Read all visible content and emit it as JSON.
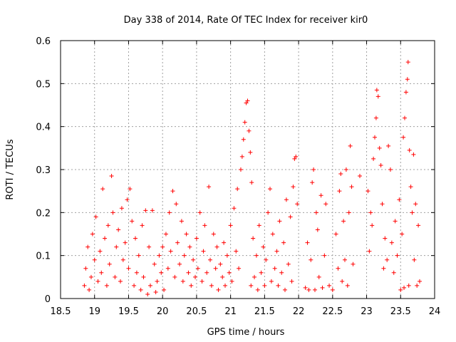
{
  "chart_data": {
    "type": "scatter",
    "title": "Day 338 of 2014, Rate Of TEC Index for receiver kir0",
    "xlabel": "GPS time / hours",
    "ylabel": "ROTI / TECUs",
    "xlim": [
      18.5,
      24
    ],
    "ylim": [
      0,
      0.6
    ],
    "xticks": [
      "18.5",
      "19",
      "19.5",
      "20",
      "20.5",
      "21",
      "21.5",
      "22",
      "22.5",
      "23",
      "23.5",
      "24"
    ],
    "yticks": [
      "0",
      "0.1",
      "0.2",
      "0.3",
      "0.4",
      "0.5",
      "0.6"
    ],
    "grid": true,
    "marker": "+",
    "color": "#ff0000",
    "series": [
      {
        "name": "ROTI",
        "points": [
          [
            18.85,
            0.03
          ],
          [
            18.87,
            0.07
          ],
          [
            18.9,
            0.12
          ],
          [
            18.92,
            0.02
          ],
          [
            18.95,
            0.05
          ],
          [
            18.97,
            0.15
          ],
          [
            19.0,
            0.09
          ],
          [
            19.02,
            0.19
          ],
          [
            19.05,
            0.04
          ],
          [
            19.08,
            0.11
          ],
          [
            19.1,
            0.06
          ],
          [
            19.12,
            0.255
          ],
          [
            19.15,
            0.14
          ],
          [
            19.18,
            0.03
          ],
          [
            19.2,
            0.17
          ],
          [
            19.22,
            0.08
          ],
          [
            19.25,
            0.285
          ],
          [
            19.27,
            0.2
          ],
          [
            19.3,
            0.05
          ],
          [
            19.32,
            0.12
          ],
          [
            19.35,
            0.16
          ],
          [
            19.38,
            0.04
          ],
          [
            19.4,
            0.21
          ],
          [
            19.42,
            0.09
          ],
          [
            19.45,
            0.13
          ],
          [
            19.48,
            0.23
          ],
          [
            19.5,
            0.07
          ],
          [
            19.52,
            0.255
          ],
          [
            19.55,
            0.18
          ],
          [
            19.58,
            0.03
          ],
          [
            19.6,
            0.14
          ],
          [
            19.62,
            0.06
          ],
          [
            19.65,
            0.1
          ],
          [
            19.68,
            0.02
          ],
          [
            19.7,
            0.17
          ],
          [
            19.72,
            0.05
          ],
          [
            19.75,
            0.205
          ],
          [
            19.78,
            0.01
          ],
          [
            19.8,
            0.12
          ],
          [
            19.82,
            0.03
          ],
          [
            19.85,
            0.205
          ],
          [
            19.88,
            0.08
          ],
          [
            19.9,
            0.015
          ],
          [
            19.92,
            0.04
          ],
          [
            19.95,
            0.1
          ],
          [
            19.98,
            0.06
          ],
          [
            20.0,
            0.12
          ],
          [
            20.02,
            0.02
          ],
          [
            20.05,
            0.15
          ],
          [
            20.08,
            0.07
          ],
          [
            20.1,
            0.2
          ],
          [
            20.12,
            0.11
          ],
          [
            20.15,
            0.25
          ],
          [
            20.18,
            0.05
          ],
          [
            20.2,
            0.22
          ],
          [
            20.22,
            0.13
          ],
          [
            20.25,
            0.08
          ],
          [
            20.28,
            0.18
          ],
          [
            20.3,
            0.04
          ],
          [
            20.32,
            0.1
          ],
          [
            20.35,
            0.15
          ],
          [
            20.38,
            0.06
          ],
          [
            20.4,
            0.12
          ],
          [
            20.42,
            0.03
          ],
          [
            20.45,
            0.09
          ],
          [
            20.48,
            0.05
          ],
          [
            20.5,
            0.14
          ],
          [
            20.52,
            0.07
          ],
          [
            20.55,
            0.2
          ],
          [
            20.58,
            0.04
          ],
          [
            20.6,
            0.11
          ],
          [
            20.62,
            0.17
          ],
          [
            20.65,
            0.06
          ],
          [
            20.68,
            0.26
          ],
          [
            20.7,
            0.09
          ],
          [
            20.72,
            0.03
          ],
          [
            20.75,
            0.15
          ],
          [
            20.78,
            0.07
          ],
          [
            20.8,
            0.12
          ],
          [
            20.82,
            0.02
          ],
          [
            20.85,
            0.08
          ],
          [
            20.88,
            0.05
          ],
          [
            20.9,
            0.13
          ],
          [
            20.92,
            0.03
          ],
          [
            20.95,
            0.1
          ],
          [
            20.98,
            0.06
          ],
          [
            21.0,
            0.17
          ],
          [
            21.02,
            0.04
          ],
          [
            21.05,
            0.21
          ],
          [
            21.08,
            0.11
          ],
          [
            21.1,
            0.255
          ],
          [
            21.12,
            0.07
          ],
          [
            21.15,
            0.3
          ],
          [
            21.17,
            0.33
          ],
          [
            21.19,
            0.37
          ],
          [
            21.21,
            0.41
          ],
          [
            21.23,
            0.455
          ],
          [
            21.25,
            0.46
          ],
          [
            21.27,
            0.39
          ],
          [
            21.29,
            0.34
          ],
          [
            21.31,
            0.27
          ],
          [
            21.3,
            0.03
          ],
          [
            21.33,
            0.14
          ],
          [
            21.35,
            0.05
          ],
          [
            21.38,
            0.1
          ],
          [
            21.4,
            0.02
          ],
          [
            21.42,
            0.17
          ],
          [
            21.45,
            0.06
          ],
          [
            21.48,
            0.12
          ],
          [
            21.5,
            0.03
          ],
          [
            21.52,
            0.09
          ],
          [
            21.55,
            0.2
          ],
          [
            21.58,
            0.255
          ],
          [
            21.6,
            0.04
          ],
          [
            21.62,
            0.15
          ],
          [
            21.65,
            0.07
          ],
          [
            21.68,
            0.11
          ],
          [
            21.7,
            0.03
          ],
          [
            21.72,
            0.18
          ],
          [
            21.75,
            0.06
          ],
          [
            21.78,
            0.13
          ],
          [
            21.8,
            0.02
          ],
          [
            21.82,
            0.23
          ],
          [
            21.85,
            0.08
          ],
          [
            21.88,
            0.19
          ],
          [
            21.9,
            0.04
          ],
          [
            21.92,
            0.26
          ],
          [
            21.94,
            0.325
          ],
          [
            21.96,
            0.33
          ],
          [
            21.98,
            0.22
          ],
          [
            22.1,
            0.025
          ],
          [
            22.13,
            0.13
          ],
          [
            22.15,
            0.02
          ],
          [
            22.18,
            0.09
          ],
          [
            22.2,
            0.27
          ],
          [
            22.22,
            0.3
          ],
          [
            22.24,
            0.02
          ],
          [
            22.26,
            0.2
          ],
          [
            22.28,
            0.16
          ],
          [
            22.3,
            0.05
          ],
          [
            22.33,
            0.24
          ],
          [
            22.35,
            0.025
          ],
          [
            22.38,
            0.1
          ],
          [
            22.4,
            0.22
          ],
          [
            22.45,
            0.03
          ],
          [
            22.5,
            0.02
          ],
          [
            22.55,
            0.15
          ],
          [
            22.58,
            0.07
          ],
          [
            22.6,
            0.25
          ],
          [
            22.62,
            0.29
          ],
          [
            22.64,
            0.04
          ],
          [
            22.66,
            0.18
          ],
          [
            22.68,
            0.09
          ],
          [
            22.7,
            0.3
          ],
          [
            22.72,
            0.03
          ],
          [
            22.74,
            0.2
          ],
          [
            22.76,
            0.355
          ],
          [
            22.78,
            0.26
          ],
          [
            22.8,
            0.08
          ],
          [
            22.9,
            0.285
          ],
          [
            23.02,
            0.25
          ],
          [
            23.04,
            0.11
          ],
          [
            23.06,
            0.2
          ],
          [
            23.08,
            0.17
          ],
          [
            23.1,
            0.325
          ],
          [
            23.12,
            0.375
          ],
          [
            23.14,
            0.42
          ],
          [
            23.15,
            0.485
          ],
          [
            23.17,
            0.47
          ],
          [
            23.19,
            0.35
          ],
          [
            23.21,
            0.31
          ],
          [
            23.23,
            0.22
          ],
          [
            23.25,
            0.07
          ],
          [
            23.27,
            0.14
          ],
          [
            23.3,
            0.09
          ],
          [
            23.32,
            0.355
          ],
          [
            23.35,
            0.3
          ],
          [
            23.37,
            0.13
          ],
          [
            23.4,
            0.06
          ],
          [
            23.42,
            0.18
          ],
          [
            23.45,
            0.1
          ],
          [
            23.48,
            0.23
          ],
          [
            23.5,
            0.02
          ],
          [
            23.52,
            0.15
          ],
          [
            23.54,
            0.375
          ],
          [
            23.56,
            0.42
          ],
          [
            23.58,
            0.48
          ],
          [
            23.6,
            0.51
          ],
          [
            23.61,
            0.55
          ],
          [
            23.63,
            0.345
          ],
          [
            23.65,
            0.26
          ],
          [
            23.67,
            0.2
          ],
          [
            23.69,
            0.335
          ],
          [
            23.7,
            0.09
          ],
          [
            23.72,
            0.22
          ],
          [
            23.74,
            0.03
          ],
          [
            23.76,
            0.17
          ],
          [
            23.78,
            0.04
          ],
          [
            23.62,
            0.03
          ],
          [
            23.55,
            0.025
          ]
        ]
      }
    ]
  }
}
